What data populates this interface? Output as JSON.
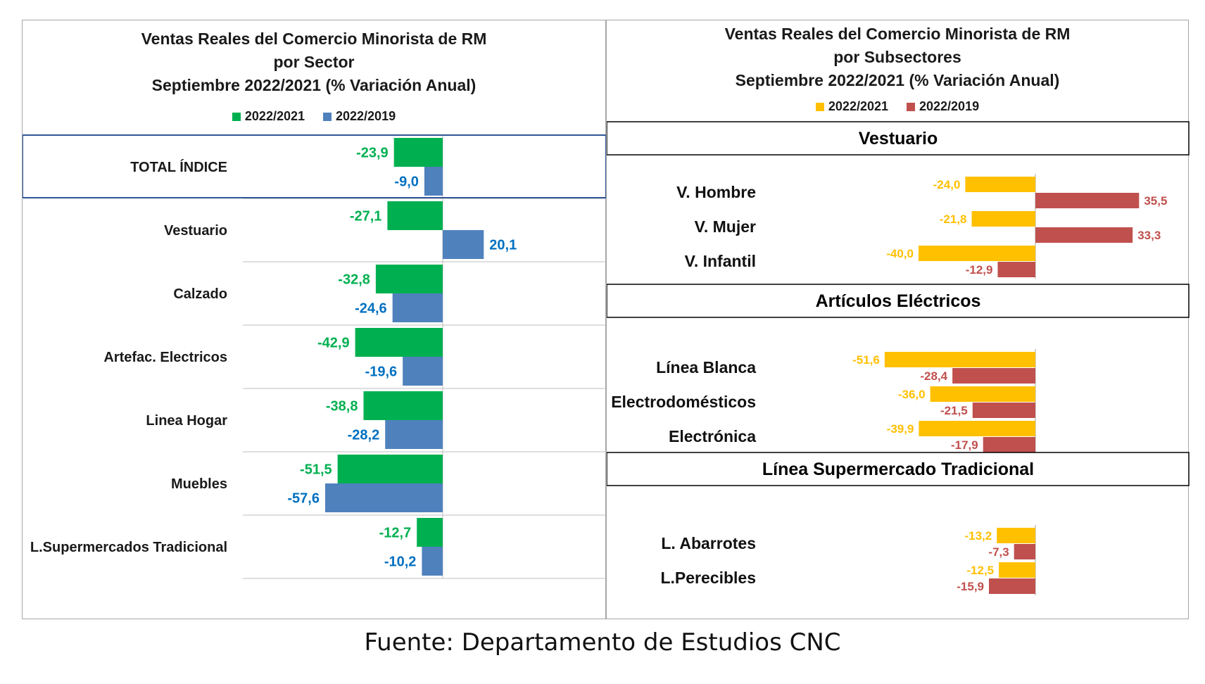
{
  "left_chart": {
    "title_lines": [
      "Ventas Reales del Comercio Minorista de RM",
      "por Sector",
      "Septiembre 2022/2021 (% Variación Anual)"
    ],
    "legend": [
      {
        "label": "2022/2021",
        "color": "#00b050"
      },
      {
        "label": "2022/2019",
        "color": "#4f81bd"
      }
    ],
    "label_colors": {
      "2022/2021": "#00b050",
      "2022/2019": "#0070c0"
    }
  },
  "right_chart": {
    "title_lines": [
      "Ventas Reales del Comercio Minorista de RM",
      "por Subsectores",
      "Septiembre 2022/2021 (% Variación Anual)"
    ],
    "legend": [
      {
        "label": "2022/2021",
        "color": "#ffc000"
      },
      {
        "label": "2022/2019",
        "color": "#c0504d"
      }
    ]
  },
  "chart_data": [
    {
      "type": "bar",
      "orientation": "horizontal",
      "categories": [
        "TOTAL ÍNDICE",
        "Vestuario",
        "Calzado",
        "Artefac. Electricos",
        "Linea Hogar",
        "Muebles",
        "L.Supermercados Tradicional"
      ],
      "series": [
        {
          "name": "2022/2021",
          "values": [
            -23.9,
            -27.1,
            -32.8,
            -42.9,
            -38.8,
            -51.5,
            -12.7
          ],
          "labels": [
            "-23,9",
            "-27,1",
            "-32,8",
            "-42,9",
            "-38,8",
            "-51,5",
            "-12,7"
          ]
        },
        {
          "name": "2022/2019",
          "values": [
            -9.0,
            20.1,
            -24.6,
            -19.6,
            -28.2,
            -57.6,
            -10.2
          ],
          "labels": [
            "-9,0",
            "20,1",
            "-24,6",
            "-19,6",
            "-28,2",
            "-57,6",
            "-10,2"
          ]
        }
      ],
      "highlighted_category": "TOTAL ÍNDICE"
    },
    {
      "type": "bar",
      "orientation": "horizontal",
      "groups": [
        {
          "header": "Vestuario",
          "categories": [
            "V. Hombre",
            "V. Mujer",
            "V. Infantil"
          ],
          "series": [
            {
              "name": "2022/2021",
              "values": [
                -24.0,
                -21.8,
                -40.0
              ],
              "labels": [
                "-24,0",
                "-21,8",
                "-40,0"
              ]
            },
            {
              "name": "2022/2019",
              "values": [
                35.5,
                33.3,
                -12.9
              ],
              "labels": [
                "35,5",
                "33,3",
                "-12,9"
              ]
            }
          ]
        },
        {
          "header": "Artículos Eléctricos",
          "categories": [
            "Línea Blanca",
            "Electrodomésticos",
            "Electrónica"
          ],
          "series": [
            {
              "name": "2022/2021",
              "values": [
                -51.6,
                -36.0,
                -39.9
              ],
              "labels": [
                "-51,6",
                "-36,0",
                "-39,9"
              ]
            },
            {
              "name": "2022/2019",
              "values": [
                -28.4,
                -21.5,
                -17.9
              ],
              "labels": [
                "-28,4",
                "-21,5",
                "-17,9"
              ]
            }
          ]
        },
        {
          "header": "Línea Supermercado Tradicional",
          "categories": [
            "L. Abarrotes",
            "L.Perecibles"
          ],
          "series": [
            {
              "name": "2022/2021",
              "values": [
                -13.2,
                -12.5
              ],
              "labels": [
                "-13,2",
                "-12,5"
              ]
            },
            {
              "name": "2022/2019",
              "values": [
                -7.3,
                -15.9
              ],
              "labels": [
                "-7,3",
                "-15,9"
              ]
            }
          ]
        }
      ]
    }
  ],
  "source": "Fuente: Departamento de Estudios CNC"
}
